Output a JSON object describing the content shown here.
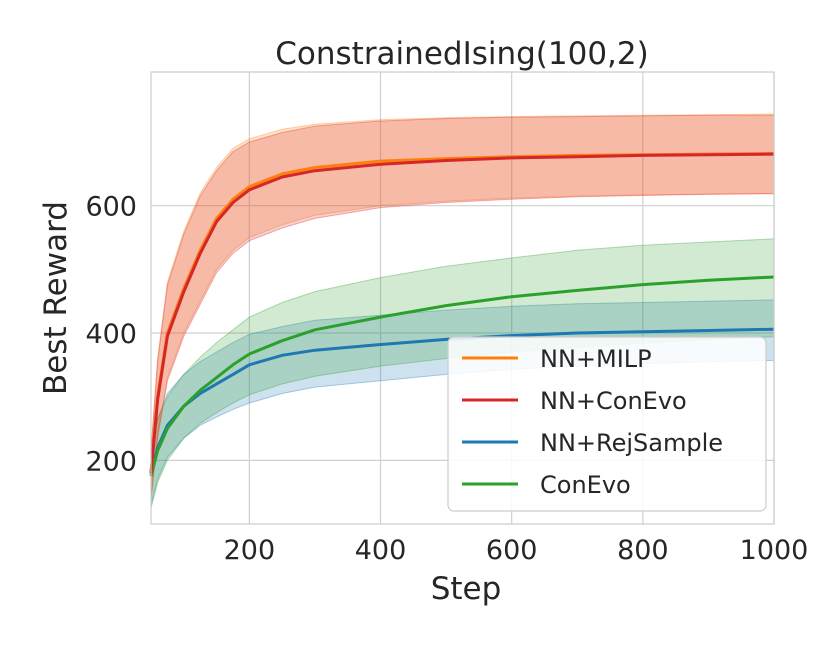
{
  "chart_data": {
    "type": "line",
    "title": "ConstrainedIsing(100,2)",
    "xlabel": "Step",
    "ylabel": "Best Reward",
    "xlim": [
      50,
      1000
    ],
    "ylim": [
      100,
      810
    ],
    "xticks": [
      200,
      400,
      600,
      800,
      1000
    ],
    "yticks": [
      200,
      400,
      600
    ],
    "grid": true,
    "legend_position": "lower-right",
    "series": [
      {
        "name": "NN+MILP",
        "color": "#ff7f0e",
        "x": [
          50,
          60,
          75,
          100,
          125,
          150,
          175,
          200,
          250,
          300,
          400,
          500,
          600,
          700,
          800,
          900,
          1000
        ],
        "y": [
          180,
          300,
          400,
          470,
          530,
          580,
          610,
          630,
          650,
          660,
          670,
          674,
          677,
          679,
          680,
          681,
          682
        ],
        "lower": [
          140,
          240,
          330,
          400,
          450,
          500,
          530,
          550,
          570,
          585,
          600,
          607,
          612,
          615,
          617,
          618,
          619
        ],
        "upper": [
          215,
          360,
          480,
          560,
          620,
          660,
          690,
          705,
          720,
          728,
          735,
          738,
          740,
          741,
          742,
          743,
          744
        ]
      },
      {
        "name": "NN+ConEvo",
        "color": "#d62728",
        "x": [
          50,
          60,
          75,
          100,
          125,
          150,
          175,
          200,
          250,
          300,
          400,
          500,
          600,
          700,
          800,
          900,
          1000
        ],
        "y": [
          180,
          295,
          395,
          465,
          525,
          575,
          605,
          625,
          645,
          655,
          665,
          671,
          675,
          677,
          679,
          680,
          681
        ],
        "lower": [
          140,
          235,
          325,
          395,
          445,
          495,
          525,
          545,
          565,
          580,
          597,
          605,
          610,
          614,
          616,
          618,
          619
        ],
        "upper": [
          215,
          355,
          475,
          555,
          615,
          655,
          685,
          700,
          715,
          725,
          733,
          737,
          739,
          740,
          741,
          742,
          742
        ]
      },
      {
        "name": "NN+RejSample",
        "color": "#1f77b4",
        "x": [
          50,
          60,
          75,
          100,
          125,
          150,
          175,
          200,
          250,
          300,
          400,
          500,
          600,
          700,
          800,
          900,
          1000
        ],
        "y": [
          178,
          220,
          255,
          285,
          305,
          320,
          335,
          350,
          365,
          373,
          382,
          390,
          396,
          400,
          402,
          404,
          406
        ],
        "lower": [
          130,
          170,
          205,
          235,
          255,
          268,
          280,
          290,
          305,
          315,
          325,
          335,
          343,
          348,
          352,
          355,
          357
        ],
        "upper": [
          215,
          265,
          305,
          335,
          355,
          370,
          385,
          398,
          410,
          420,
          428,
          436,
          442,
          446,
          448,
          450,
          452
        ]
      },
      {
        "name": "ConEvo",
        "color": "#2ca02c",
        "x": [
          50,
          60,
          75,
          100,
          125,
          150,
          175,
          200,
          250,
          300,
          400,
          500,
          600,
          700,
          800,
          900,
          1000
        ],
        "y": [
          175,
          215,
          250,
          285,
          310,
          330,
          350,
          367,
          388,
          405,
          425,
          443,
          457,
          467,
          476,
          483,
          488
        ],
        "lower": [
          125,
          165,
          200,
          235,
          258,
          275,
          290,
          303,
          320,
          332,
          348,
          360,
          370,
          378,
          384,
          390,
          394
        ],
        "upper": [
          225,
          265,
          300,
          335,
          362,
          385,
          405,
          425,
          448,
          465,
          487,
          505,
          518,
          530,
          538,
          543,
          548
        ]
      }
    ]
  }
}
